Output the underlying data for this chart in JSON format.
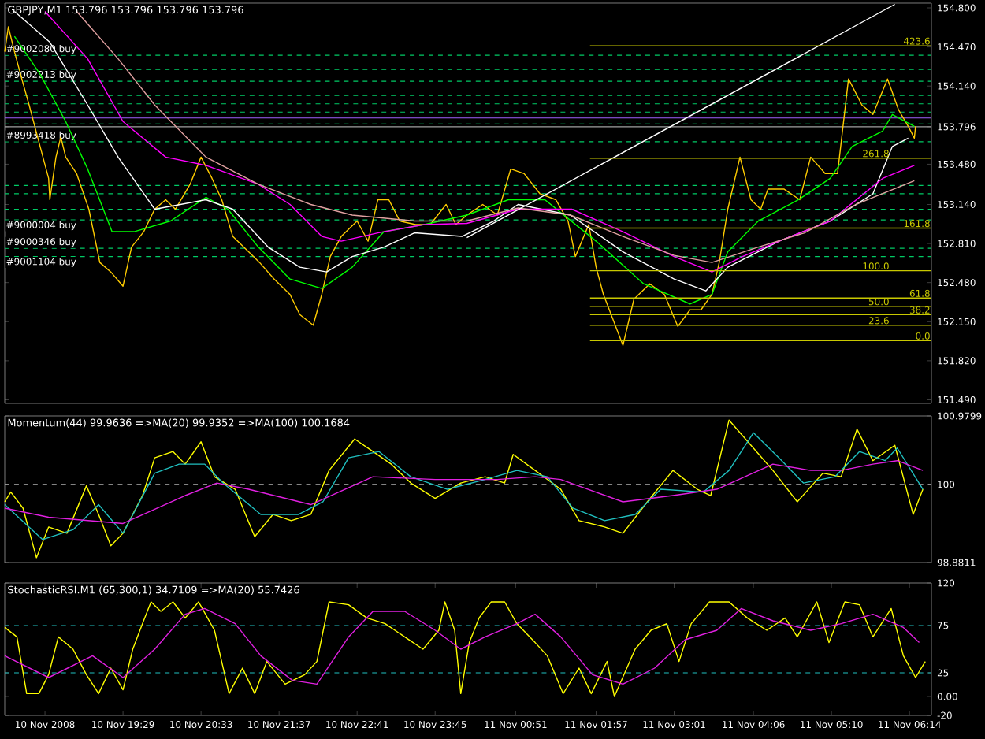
{
  "chart_data": [
    {
      "type": "line",
      "title": "GBPJPY,M1 153.796 153.796 153.796 153.796",
      "xlim": [
        "2008-11-10T17:52",
        "2008-11-11T06:32"
      ],
      "ylim": [
        151.46,
        154.84
      ],
      "tick_labels": "y",
      "yticks": [
        {
          "value": 154.8,
          "label": "154.800"
        },
        {
          "value": 154.47,
          "label": "154.470"
        },
        {
          "value": 154.14,
          "label": "154.140"
        },
        {
          "value": 153.796,
          "label": "153.796"
        },
        {
          "value": 153.48,
          "label": "153.480"
        },
        {
          "value": 153.14,
          "label": "153.140"
        },
        {
          "value": 152.81,
          "label": "152.810"
        },
        {
          "value": 152.48,
          "label": "152.480"
        },
        {
          "value": 152.15,
          "label": "152.150"
        },
        {
          "value": 151.82,
          "label": "151.820"
        },
        {
          "value": 151.49,
          "label": "151.490"
        }
      ],
      "ref_lines": [
        {
          "axis": "y",
          "value": 154.4,
          "label": "#9002080 buy",
          "color": "#00cc66",
          "line_style": "dashed"
        },
        {
          "axis": "y",
          "value": 154.28,
          "label": "#9002213 buy",
          "color": "#00cc66",
          "line_style": "dashed"
        },
        {
          "axis": "y",
          "value": 154.18,
          "color": "#00cc66",
          "line_style": "dashed"
        },
        {
          "axis": "y",
          "value": 154.06,
          "color": "#00cc66",
          "line_style": "dashed"
        },
        {
          "axis": "y",
          "value": 153.99,
          "color": "#00cc66",
          "line_style": "dashed"
        },
        {
          "axis": "y",
          "value": 153.92,
          "color": "#00cc66",
          "line_style": "dashed"
        },
        {
          "axis": "y",
          "value": 153.87,
          "color": "#a060ff",
          "line_style": "solid"
        },
        {
          "axis": "y",
          "value": 153.82,
          "color": "#00cc66",
          "line_style": "dashed"
        },
        {
          "axis": "y",
          "value": 153.796,
          "color": "#a0a0a0",
          "line_style": "solid"
        },
        {
          "axis": "y",
          "value": 153.67,
          "label": "#8993418 buy",
          "color": "#00cc66",
          "line_style": "dashed"
        },
        {
          "axis": "y",
          "value": 153.3,
          "color": "#00cc66",
          "line_style": "dashed"
        },
        {
          "axis": "y",
          "value": 153.23,
          "color": "#00cc66",
          "line_style": "dashed"
        },
        {
          "axis": "y",
          "value": 153.1,
          "color": "#00cc66",
          "line_style": "dashed"
        },
        {
          "axis": "y",
          "value": 153.01,
          "label": "#9000004 buy",
          "color": "#00cc66",
          "line_style": "dashed"
        },
        {
          "axis": "y",
          "value": 152.77,
          "label": "#9000346 buy",
          "color": "#00cc66",
          "line_style": "dashed"
        },
        {
          "axis": "y",
          "value": 152.7,
          "label": "#9001104 buy",
          "color": "#00cc66",
          "line_style": "dashed"
        }
      ],
      "series": [
        {
          "color": "#ffcc00",
          "x": [
            "2008-11-10T17:52",
            "2008-11-10T17:55",
            "2008-11-10T18:00",
            "2008-11-10T18:06",
            "2008-11-10T18:12",
            "2008-11-10T18:21",
            "2008-11-10T18:28",
            "2008-11-10T18:29",
            "2008-11-10T18:34",
            "2008-11-10T18:38",
            "2008-11-10T18:42",
            "2008-11-10T18:51",
            "2008-11-10T19:01",
            "2008-11-10T19:10",
            "2008-11-10T19:19",
            "2008-11-10T19:29",
            "2008-11-10T19:36",
            "2008-11-10T19:46",
            "2008-11-10T19:55",
            "2008-11-10T20:04",
            "2008-11-10T20:12",
            "2008-11-10T20:24",
            "2008-11-10T20:33",
            "2008-11-10T20:42",
            "2008-11-10T20:50",
            "2008-11-10T20:59",
            "2008-11-10T21:12",
            "2008-11-10T21:21",
            "2008-11-10T21:33",
            "2008-11-10T21:46",
            "2008-11-10T21:54",
            "2008-11-10T22:05",
            "2008-11-10T22:12",
            "2008-11-10T22:19",
            "2008-11-10T22:28",
            "2008-11-10T22:41",
            "2008-11-10T22:50",
            "2008-11-10T22:58",
            "2008-11-10T23:07",
            "2008-11-10T23:16",
            "2008-11-10T23:29",
            "2008-11-10T23:41",
            "2008-11-10T23:54",
            "2008-11-11T00:02",
            "2008-11-11T00:11",
            "2008-11-11T00:24",
            "2008-11-11T00:36",
            "2008-11-11T00:47",
            "2008-11-11T00:58",
            "2008-11-11T01:11",
            "2008-11-11T01:24",
            "2008-11-11T01:34",
            "2008-11-11T01:40",
            "2008-11-11T01:51",
            "2008-11-11T01:57",
            "2008-11-11T02:03",
            "2008-11-11T02:19",
            "2008-11-11T02:28",
            "2008-11-11T02:41",
            "2008-11-11T02:53",
            "2008-11-11T03:04",
            "2008-11-11T03:14",
            "2008-11-11T03:23",
            "2008-11-11T03:32",
            "2008-11-11T03:38",
            "2008-11-11T03:45",
            "2008-11-11T03:55",
            "2008-11-11T04:04",
            "2008-11-11T04:12",
            "2008-11-11T04:18",
            "2008-11-11T04:31",
            "2008-11-11T04:44",
            "2008-11-11T04:53",
            "2008-11-11T05:05",
            "2008-11-11T05:15",
            "2008-11-11T05:24",
            "2008-11-11T05:35",
            "2008-11-11T05:44",
            "2008-11-11T05:56",
            "2008-11-11T06:05",
            "2008-11-11T06:13",
            "2008-11-11T06:18",
            "2008-11-11T06:19"
          ],
          "values": [
            154.43,
            154.64,
            154.43,
            154.2,
            153.98,
            153.63,
            153.36,
            153.18,
            153.54,
            153.71,
            153.54,
            153.4,
            153.1,
            152.65,
            152.57,
            152.45,
            152.78,
            152.91,
            153.1,
            153.18,
            153.1,
            153.31,
            153.54,
            153.36,
            153.18,
            152.87,
            152.74,
            152.65,
            152.51,
            152.38,
            152.21,
            152.12,
            152.38,
            152.7,
            152.87,
            153.0,
            152.83,
            153.18,
            153.18,
            153.0,
            152.97,
            152.97,
            153.14,
            152.97,
            153.05,
            153.14,
            153.05,
            153.44,
            153.4,
            153.23,
            153.18,
            153.0,
            152.7,
            152.97,
            152.61,
            152.38,
            151.95,
            152.34,
            152.47,
            152.38,
            152.11,
            152.25,
            152.25,
            152.38,
            152.65,
            153.1,
            153.54,
            153.18,
            153.1,
            153.27,
            153.27,
            153.18,
            153.54,
            153.4,
            153.4,
            154.2,
            153.98,
            153.9,
            154.2,
            153.94,
            153.8,
            153.7,
            153.8
          ]
        },
        {
          "color": "#00ff00",
          "x": [
            "2008-11-10T18:00",
            "2008-11-10T18:21",
            "2008-11-10T18:42",
            "2008-11-10T19:00",
            "2008-11-10T19:20",
            "2008-11-10T19:38",
            "2008-11-10T20:08",
            "2008-11-10T20:37",
            "2008-11-10T20:55",
            "2008-11-10T21:20",
            "2008-11-10T21:46",
            "2008-11-10T22:12",
            "2008-11-10T22:37",
            "2008-11-10T23:03",
            "2008-11-10T23:36",
            "2008-11-11T00:11",
            "2008-11-11T00:45",
            "2008-11-11T01:15",
            "2008-11-11T01:57",
            "2008-11-11T02:36",
            "2008-11-11T03:14",
            "2008-11-11T03:32",
            "2008-11-11T03:45",
            "2008-11-11T04:10",
            "2008-11-11T04:43",
            "2008-11-11T05:09",
            "2008-11-11T05:27",
            "2008-11-11T05:52",
            "2008-11-11T06:00",
            "2008-11-11T06:18"
          ],
          "values": [
            154.56,
            154.24,
            153.84,
            153.44,
            152.91,
            152.91,
            153.0,
            153.2,
            153.1,
            152.78,
            152.51,
            152.43,
            152.61,
            152.91,
            152.97,
            153.05,
            153.18,
            153.18,
            152.83,
            152.47,
            152.3,
            152.38,
            152.74,
            153.0,
            153.18,
            153.36,
            153.63,
            153.76,
            153.9,
            153.8
          ]
        },
        {
          "color": "#ffffff",
          "x": [
            "2008-11-10T18:00",
            "2008-11-10T18:29",
            "2008-11-10T19:00",
            "2008-11-10T19:25",
            "2008-11-10T19:55",
            "2008-11-10T20:37",
            "2008-11-10T20:59",
            "2008-11-10T21:28",
            "2008-11-10T21:54",
            "2008-11-10T22:16",
            "2008-11-10T22:37",
            "2008-11-10T23:03",
            "2008-11-10T23:28",
            "2008-11-11T00:07",
            "2008-11-11T00:33",
            "2008-11-11T00:53",
            "2008-11-11T01:36",
            "2008-11-11T02:19",
            "2008-11-11T03:01",
            "2008-11-11T03:27",
            "2008-11-11T03:45",
            "2008-11-11T04:27",
            "2008-11-11T05:09",
            "2008-11-11T05:44",
            "2008-11-11T06:00",
            "2008-11-11T06:13"
          ],
          "values": [
            154.77,
            154.51,
            153.98,
            153.54,
            153.1,
            153.18,
            153.1,
            152.78,
            152.61,
            152.57,
            152.7,
            152.78,
            152.9,
            152.87,
            153.0,
            153.14,
            153.05,
            152.74,
            152.51,
            152.41,
            152.61,
            152.83,
            153.0,
            153.23,
            153.63,
            153.7
          ]
        },
        {
          "color": "#ff00ff",
          "x": [
            "2008-11-10T18:25",
            "2008-11-10T19:00",
            "2008-11-10T19:29",
            "2008-11-10T20:04",
            "2008-11-10T20:37",
            "2008-11-10T21:20",
            "2008-11-10T21:46",
            "2008-11-10T22:12",
            "2008-11-10T22:28",
            "2008-11-10T22:58",
            "2008-11-10T23:36",
            "2008-11-11T00:11",
            "2008-11-11T00:53",
            "2008-11-11T01:37",
            "2008-11-11T02:19",
            "2008-11-11T03:01",
            "2008-11-11T03:32",
            "2008-11-11T03:57",
            "2008-11-11T04:27",
            "2008-11-11T05:09",
            "2008-11-11T05:52",
            "2008-11-11T06:18"
          ],
          "values": [
            154.77,
            154.37,
            153.84,
            153.54,
            153.47,
            153.31,
            153.14,
            152.87,
            152.83,
            152.9,
            152.97,
            152.98,
            153.1,
            153.1,
            152.91,
            152.7,
            152.57,
            152.7,
            152.83,
            153.0,
            153.36,
            153.47
          ]
        },
        {
          "color": "#e0a0a0",
          "x": [
            "2008-11-10T18:51",
            "2008-11-10T19:25",
            "2008-11-10T19:55",
            "2008-11-10T20:37",
            "2008-11-10T21:20",
            "2008-11-10T22:03",
            "2008-11-10T22:37",
            "2008-11-10T23:28",
            "2008-11-11T00:11",
            "2008-11-11T00:53",
            "2008-11-11T01:36",
            "2008-11-11T02:19",
            "2008-11-11T03:01",
            "2008-11-11T03:32",
            "2008-11-11T04:10",
            "2008-11-11T04:48",
            "2008-11-11T05:30",
            "2008-11-11T06:18"
          ],
          "values": [
            154.77,
            154.37,
            153.98,
            153.54,
            153.31,
            153.14,
            153.05,
            153.0,
            153.0,
            153.11,
            153.05,
            152.87,
            152.71,
            152.65,
            152.78,
            152.9,
            153.14,
            153.34
          ]
        },
        {
          "color": "#ffffff",
          "x": [
            "2008-11-11T00:11",
            "2008-11-11T06:02"
          ],
          "values": [
            152.86,
            154.83
          ]
        },
        {
          "name": "423.6",
          "color": "#c8c800",
          "x": [
            "2008-11-11T01:52",
            "2008-11-11T06:32"
          ],
          "values": [
            154.48,
            154.48
          ]
        },
        {
          "name": "261.8",
          "color": "#c8c800",
          "x": [
            "2008-11-11T01:52",
            "2008-11-11T06:32"
          ],
          "values": [
            153.53,
            153.53
          ]
        },
        {
          "name": "161.8",
          "color": "#c8c800",
          "x": [
            "2008-11-11T01:52",
            "2008-11-11T06:32"
          ],
          "values": [
            152.94,
            152.94
          ]
        },
        {
          "name": "100.0",
          "color": "#c8c800",
          "x": [
            "2008-11-11T01:52",
            "2008-11-11T06:32"
          ],
          "values": [
            152.58,
            152.58
          ]
        },
        {
          "name": "61.8",
          "color": "#c8c800",
          "x": [
            "2008-11-11T01:52",
            "2008-11-11T06:32"
          ],
          "values": [
            152.35,
            152.35
          ]
        },
        {
          "name": "50.0",
          "color": "#c8c800",
          "x": [
            "2008-11-11T01:52",
            "2008-11-11T06:32"
          ],
          "values": [
            152.28,
            152.28
          ]
        },
        {
          "name": "38.2",
          "color": "#c8c800",
          "x": [
            "2008-11-11T01:52",
            "2008-11-11T06:32"
          ],
          "values": [
            152.21,
            152.21
          ]
        },
        {
          "name": "23.6",
          "color": "#c8c800",
          "x": [
            "2008-11-11T01:52",
            "2008-11-11T06:32"
          ],
          "values": [
            152.12,
            152.12
          ]
        },
        {
          "name": "0.0",
          "color": "#c8c800",
          "x": [
            "2008-11-11T01:52",
            "2008-11-11T06:32"
          ],
          "values": [
            151.99,
            151.99
          ]
        }
      ]
    },
    {
      "type": "line",
      "title": "Momentum(44) 99.9636  =>MA(20) 99.9352  =>MA(100) 100.1684",
      "xlim": [
        "2008-11-10T17:52",
        "2008-11-11T06:32"
      ],
      "ylim": [
        98.8811,
        100.9799
      ],
      "tick_labels": "y",
      "yticks": [
        98.8811,
        100,
        100.9799
      ],
      "ref_lines": [
        {
          "axis": "y",
          "value": 100,
          "color": "#b0b0b0",
          "line_style": "dashed"
        }
      ],
      "series": [
        {
          "color": "#ffff00",
          "x": [
            "2008-11-10T17:52",
            "2008-11-10T17:57",
            "2008-11-10T18:07",
            "2008-11-10T18:18",
            "2008-11-10T18:28",
            "2008-11-10T18:43",
            "2008-11-10T18:59",
            "2008-11-10T19:09",
            "2008-11-10T19:19",
            "2008-11-10T19:29",
            "2008-11-10T19:45",
            "2008-11-10T19:55",
            "2008-11-10T20:10",
            "2008-11-10T20:20",
            "2008-11-10T20:33",
            "2008-11-10T20:44",
            "2008-11-10T21:01",
            "2008-11-10T21:17",
            "2008-11-10T21:32",
            "2008-11-10T21:47",
            "2008-11-10T22:03",
            "2008-11-10T22:18",
            "2008-11-10T22:39",
            "2008-11-10T22:54",
            "2008-11-10T23:09",
            "2008-11-10T23:25",
            "2008-11-10T23:45",
            "2008-11-11T00:06",
            "2008-11-11T00:26",
            "2008-11-11T00:42",
            "2008-11-11T00:49",
            "2008-11-11T01:07",
            "2008-11-11T01:28",
            "2008-11-11T01:43",
            "2008-11-11T02:04",
            "2008-11-11T02:19",
            "2008-11-11T02:39",
            "2008-11-11T03:00",
            "2008-11-11T03:20",
            "2008-11-11T03:31",
            "2008-11-11T03:46",
            "2008-11-11T04:06",
            "2008-11-11T04:22",
            "2008-11-11T04:42",
            "2008-11-11T05:03",
            "2008-11-11T05:18",
            "2008-11-11T05:31",
            "2008-11-11T05:44",
            "2008-11-11T06:02",
            "2008-11-11T06:17",
            "2008-11-11T06:25"
          ],
          "values": [
            99.75,
            99.89,
            99.66,
            98.95,
            99.39,
            99.3,
            99.98,
            99.57,
            99.12,
            99.3,
            99.84,
            100.38,
            100.47,
            100.29,
            100.61,
            100.11,
            99.93,
            99.25,
            99.57,
            99.48,
            99.57,
            100.2,
            100.65,
            100.47,
            100.29,
            100.02,
            99.8,
            100.02,
            100.11,
            100.02,
            100.43,
            100.2,
            99.93,
            99.48,
            99.39,
            99.3,
            99.75,
            100.2,
            99.93,
            99.84,
            100.92,
            100.52,
            100.2,
            99.75,
            100.16,
            100.11,
            100.79,
            100.34,
            100.56,
            99.57,
            99.93
          ]
        },
        {
          "color": "#20c0c0",
          "x": [
            "2008-11-10T17:52",
            "2008-11-10T18:23",
            "2008-11-10T18:48",
            "2008-11-10T19:09",
            "2008-11-10T19:29",
            "2008-11-10T19:55",
            "2008-11-10T20:15",
            "2008-11-10T20:36",
            "2008-11-10T20:51",
            "2008-11-10T21:22",
            "2008-11-10T21:53",
            "2008-11-10T22:13",
            "2008-11-10T22:34",
            "2008-11-10T22:59",
            "2008-11-10T23:25",
            "2008-11-10T23:55",
            "2008-11-11T00:26",
            "2008-11-11T00:52",
            "2008-11-11T01:17",
            "2008-11-11T01:38",
            "2008-11-11T02:04",
            "2008-11-11T02:29",
            "2008-11-11T02:50",
            "2008-11-11T03:25",
            "2008-11-11T03:46",
            "2008-11-11T04:06",
            "2008-11-11T04:27",
            "2008-11-11T04:47",
            "2008-11-11T05:13",
            "2008-11-11T05:33",
            "2008-11-11T05:54",
            "2008-11-11T06:04",
            "2008-11-11T06:25"
          ],
          "values": [
            99.71,
            99.21,
            99.35,
            99.71,
            99.3,
            100.16,
            100.29,
            100.29,
            100.02,
            99.57,
            99.57,
            99.75,
            100.38,
            100.47,
            100.11,
            99.93,
            100.07,
            100.2,
            100.11,
            99.66,
            99.48,
            99.57,
            99.93,
            99.89,
            100.2,
            100.74,
            100.38,
            100.02,
            100.11,
            100.47,
            100.34,
            100.52,
            99.93
          ]
        },
        {
          "color": "#e020e0",
          "x": [
            "2008-11-10T17:52",
            "2008-11-10T18:28",
            "2008-11-10T19:29",
            "2008-11-10T20:20",
            "2008-11-10T20:46",
            "2008-11-10T21:12",
            "2008-11-10T22:03",
            "2008-11-10T22:54",
            "2008-11-10T23:45",
            "2008-11-11T00:36",
            "2008-11-11T01:07",
            "2008-11-11T01:28",
            "2008-11-11T02:19",
            "2008-11-11T03:00",
            "2008-11-11T03:36",
            "2008-11-11T04:22",
            "2008-11-11T04:53",
            "2008-11-11T05:18",
            "2008-11-11T05:44",
            "2008-11-11T06:04",
            "2008-11-11T06:25"
          ],
          "values": [
            99.66,
            99.53,
            99.44,
            99.84,
            100.02,
            99.93,
            99.71,
            100.11,
            100.07,
            100.07,
            100.11,
            100.07,
            99.75,
            99.84,
            99.93,
            100.29,
            100.2,
            100.2,
            100.29,
            100.34,
            100.2
          ]
        }
      ]
    },
    {
      "type": "line",
      "title": "StochasticRSI.M1 (65,300,1) 34.7109  =>MA(20) 55.7426",
      "xlim": [
        "2008-11-10T17:52",
        "2008-11-11T06:32"
      ],
      "ylim": [
        -20,
        120
      ],
      "yticks": [
        -20,
        {
          "value": 0,
          "label": "0.00"
        },
        25,
        75,
        120
      ],
      "xticks": [
        {
          "value": "2008-11-10T18:25",
          "label": "10 Nov 2008"
        },
        {
          "value": "2008-11-10T19:29",
          "label": "10 Nov 19:29"
        },
        {
          "value": "2008-11-10T20:33",
          "label": "10 Nov 20:33"
        },
        {
          "value": "2008-11-10T21:37",
          "label": "10 Nov 21:37"
        },
        {
          "value": "2008-11-10T22:41",
          "label": "10 Nov 22:41"
        },
        {
          "value": "2008-11-10T23:45",
          "label": "10 Nov 23:45"
        },
        {
          "value": "2008-11-11T00:51",
          "label": "11 Nov 00:51"
        },
        {
          "value": "2008-11-11T01:57",
          "label": "11 Nov 01:57"
        },
        {
          "value": "2008-11-11T03:01",
          "label": "11 Nov 03:01"
        },
        {
          "value": "2008-11-11T04:06",
          "label": "11 Nov 04:06"
        },
        {
          "value": "2008-11-11T05:10",
          "label": "11 Nov 05:10"
        },
        {
          "value": "2008-11-11T06:14",
          "label": "11 Nov 06:14"
        }
      ],
      "ref_lines": [
        {
          "axis": "y",
          "value": 75,
          "color": "#20c0c0",
          "line_style": "dashed"
        },
        {
          "axis": "y",
          "value": 25,
          "color": "#20c0c0",
          "line_style": "dashed"
        }
      ],
      "series": [
        {
          "color": "#ffff00",
          "x": [
            "2008-11-10T17:52",
            "2008-11-10T18:02",
            "2008-11-10T18:10",
            "2008-11-10T18:20",
            "2008-11-10T18:28",
            "2008-11-10T18:36",
            "2008-11-10T18:48",
            "2008-11-10T18:59",
            "2008-11-10T19:09",
            "2008-11-10T19:19",
            "2008-11-10T19:29",
            "2008-11-10T19:37",
            "2008-11-10T19:45",
            "2008-11-10T19:52",
            "2008-11-10T20:00",
            "2008-11-10T20:10",
            "2008-11-10T20:20",
            "2008-11-10T20:31",
            "2008-11-10T20:44",
            "2008-11-10T20:56",
            "2008-11-10T21:07",
            "2008-11-10T21:17",
            "2008-11-10T21:27",
            "2008-11-10T21:42",
            "2008-11-10T21:58",
            "2008-11-10T22:08",
            "2008-11-10T22:18",
            "2008-11-10T22:34",
            "2008-11-10T22:49",
            "2008-11-10T23:04",
            "2008-11-10T23:20",
            "2008-11-10T23:35",
            "2008-11-10T23:48",
            "2008-11-10T23:53",
            "2008-11-11T00:01",
            "2008-11-11T00:06",
            "2008-11-11T00:13",
            "2008-11-11T00:21",
            "2008-11-11T00:31",
            "2008-11-11T00:42",
            "2008-11-11T00:52",
            "2008-11-11T01:07",
            "2008-11-11T01:17",
            "2008-11-11T01:30",
            "2008-11-11T01:43",
            "2008-11-11T01:53",
            "2008-11-11T02:06",
            "2008-11-11T02:12",
            "2008-11-11T02:29",
            "2008-11-11T02:42",
            "2008-11-11T02:55",
            "2008-11-11T03:05",
            "2008-11-11T03:15",
            "2008-11-11T03:30",
            "2008-11-11T03:46",
            "2008-11-11T04:01",
            "2008-11-11T04:17",
            "2008-11-11T04:32",
            "2008-11-11T04:42",
            "2008-11-11T04:58",
            "2008-11-11T05:08",
            "2008-11-11T05:21",
            "2008-11-11T05:33",
            "2008-11-11T05:44",
            "2008-11-11T05:59",
            "2008-11-11T06:09",
            "2008-11-11T06:19",
            "2008-11-11T06:27"
          ],
          "values": [
            73,
            63,
            3,
            3,
            23,
            63,
            50,
            23,
            3,
            30,
            7,
            50,
            77,
            100,
            90,
            100,
            83,
            100,
            70,
            3,
            30,
            3,
            37,
            13,
            23,
            37,
            100,
            97,
            83,
            77,
            63,
            50,
            70,
            100,
            70,
            3,
            57,
            83,
            100,
            100,
            77,
            57,
            43,
            3,
            30,
            3,
            37,
            0,
            50,
            70,
            77,
            37,
            77,
            100,
            100,
            83,
            70,
            83,
            63,
            100,
            57,
            100,
            97,
            63,
            93,
            43,
            20,
            37
          ]
        },
        {
          "color": "#e020e0",
          "x": [
            "2008-11-10T17:52",
            "2008-11-10T18:28",
            "2008-11-10T19:04",
            "2008-11-10T19:29",
            "2008-11-10T19:55",
            "2008-11-10T20:20",
            "2008-11-10T20:36",
            "2008-11-10T21:01",
            "2008-11-10T21:22",
            "2008-11-10T21:48",
            "2008-11-10T22:08",
            "2008-11-10T22:34",
            "2008-11-10T22:54",
            "2008-11-10T23:20",
            "2008-11-10T23:45",
            "2008-11-11T00:06",
            "2008-11-11T00:26",
            "2008-11-11T00:52",
            "2008-11-11T01:07",
            "2008-11-11T01:28",
            "2008-11-11T01:54",
            "2008-11-11T02:19",
            "2008-11-11T02:45",
            "2008-11-11T03:10",
            "2008-11-11T03:36",
            "2008-11-11T03:56",
            "2008-11-11T04:22",
            "2008-11-11T04:53",
            "2008-11-11T05:18",
            "2008-11-11T05:44",
            "2008-11-11T06:09",
            "2008-11-11T06:22"
          ],
          "values": [
            43,
            20,
            43,
            20,
            50,
            87,
            93,
            77,
            43,
            17,
            13,
            63,
            90,
            90,
            70,
            50,
            63,
            77,
            87,
            63,
            23,
            13,
            30,
            60,
            70,
            93,
            80,
            70,
            77,
            87,
            73,
            57
          ]
        }
      ]
    }
  ]
}
